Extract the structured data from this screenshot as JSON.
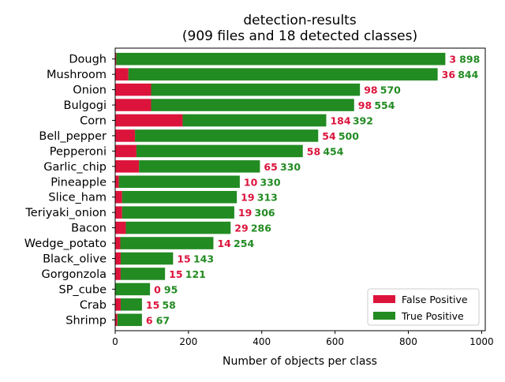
{
  "chart_data": {
    "type": "bar",
    "orientation": "horizontal",
    "stacked": true,
    "title": "detection-results",
    "subtitle": "(909 files and 18 detected classes)",
    "xlabel": "Number of objects per class",
    "ylabel": "",
    "xlim": [
      0,
      1010
    ],
    "x_ticks": [
      0,
      200,
      400,
      600,
      800,
      1000
    ],
    "grid": false,
    "legend_position": "lower-right",
    "categories": [
      "Dough",
      "Mushroom",
      "Onion",
      "Bulgogi",
      "Corn",
      "Bell_pepper",
      "Pepperoni",
      "Garlic_chip",
      "Pineapple",
      "Slice_ham",
      "Teriyaki_onion",
      "Bacon",
      "Wedge_potato",
      "Black_olive",
      "Gorgonzola",
      "SP_cube",
      "Crab",
      "Shrimp"
    ],
    "series": [
      {
        "name": "False Positive",
        "color": "#dc143c",
        "values": [
          3,
          36,
          98,
          98,
          184,
          54,
          58,
          65,
          10,
          19,
          19,
          29,
          14,
          15,
          15,
          0,
          15,
          6
        ]
      },
      {
        "name": "True Positive",
        "color": "#228b22",
        "values": [
          898,
          844,
          570,
          554,
          392,
          500,
          454,
          330,
          330,
          313,
          306,
          286,
          254,
          143,
          121,
          95,
          58,
          67
        ]
      }
    ]
  }
}
